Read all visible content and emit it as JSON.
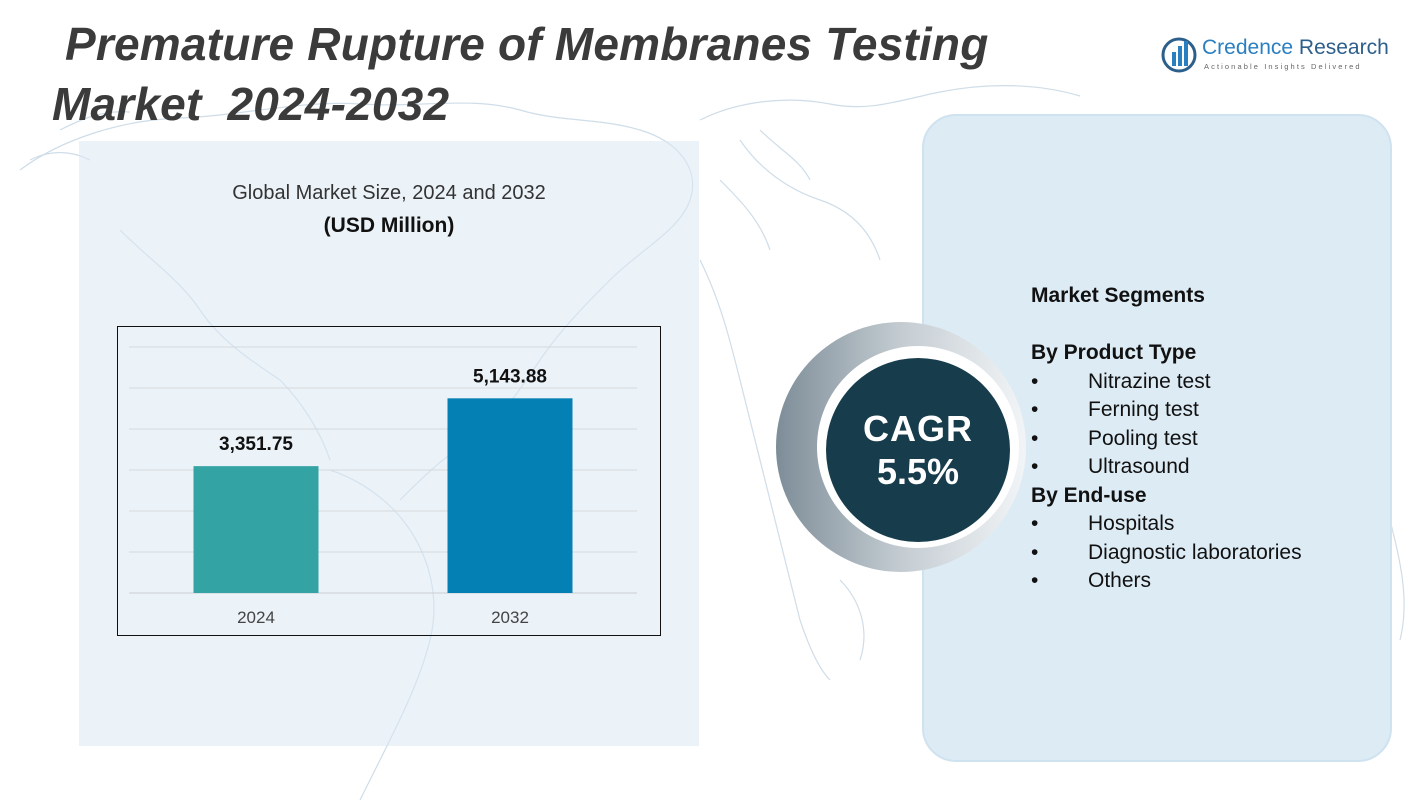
{
  "header": {
    "title_line1": " Premature Rupture of Membranes Testing",
    "title_line2": "Market  2024-2032"
  },
  "logo": {
    "name_part1": "Credence",
    "name_part2": " Research",
    "tagline": "Actionable Insights Delivered"
  },
  "colors": {
    "bar_2024": "#34a3a3",
    "bar_2032": "#0580b4",
    "cagr_circle": "#173c4c",
    "panel_bg": "#ddebf5"
  },
  "chart_data": {
    "type": "bar",
    "title": "Global Market Size, 2024 and 2032",
    "unit": "(USD Million)",
    "categories": [
      "2024",
      "2032"
    ],
    "values": [
      3351.75,
      5143.88
    ],
    "value_labels": [
      "3,351.75",
      "5,143.88"
    ],
    "ylim": [
      0,
      6500
    ],
    "grid": true,
    "legend": "none"
  },
  "cagr": {
    "label": "CAGR",
    "value": "5.5%"
  },
  "segments": {
    "heading": "Market Segments",
    "groups": [
      {
        "title": "By Product Type",
        "items": [
          "Nitrazine test",
          "Ferning test",
          "Pooling test",
          "Ultrasound"
        ]
      },
      {
        "title": "By End-use",
        "items": [
          "Hospitals",
          "Diagnostic laboratories",
          "Others"
        ]
      }
    ]
  }
}
